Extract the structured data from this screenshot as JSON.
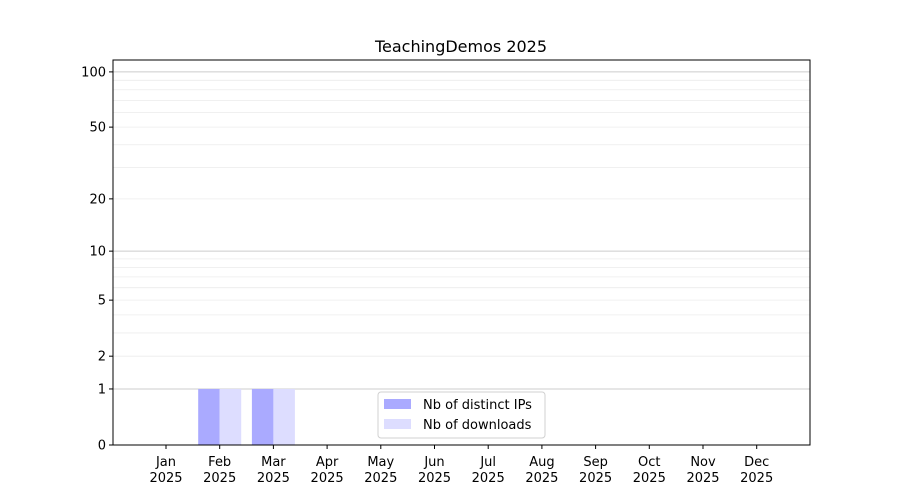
{
  "chart_data": {
    "type": "bar",
    "title": "TeachingDemos 2025",
    "xlabel": "",
    "ylabel": "",
    "yscale": "symlog (log of 1+y)",
    "ylim": [
      0,
      116
    ],
    "yticks": [
      0,
      1,
      2,
      5,
      10,
      20,
      50,
      100
    ],
    "grid": true,
    "legend_position": "lower-center",
    "categories": [
      [
        "Jan",
        "2025"
      ],
      [
        "Feb",
        "2025"
      ],
      [
        "Mar",
        "2025"
      ],
      [
        "Apr",
        "2025"
      ],
      [
        "May",
        "2025"
      ],
      [
        "Jun",
        "2025"
      ],
      [
        "Jul",
        "2025"
      ],
      [
        "Aug",
        "2025"
      ],
      [
        "Sep",
        "2025"
      ],
      [
        "Oct",
        "2025"
      ],
      [
        "Nov",
        "2025"
      ],
      [
        "Dec",
        "2025"
      ]
    ],
    "series": [
      {
        "name": "Nb of distinct IPs",
        "color": "#aaaaff",
        "values": [
          0,
          1,
          1,
          0,
          0,
          0,
          0,
          0,
          0,
          0,
          0,
          0
        ]
      },
      {
        "name": "Nb of downloads",
        "color": "#ddddff",
        "values": [
          0,
          1,
          1,
          0,
          0,
          0,
          0,
          0,
          0,
          0,
          0,
          0
        ]
      }
    ]
  }
}
